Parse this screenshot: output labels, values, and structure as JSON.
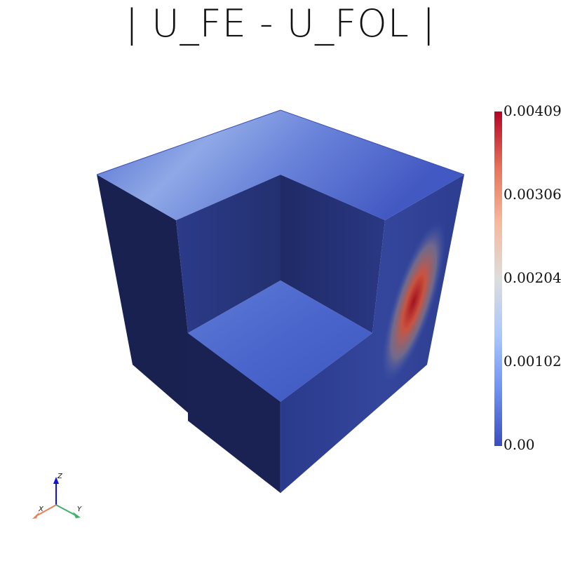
{
  "title": "| U_FE - U_FOL |",
  "colorbar": {
    "max_label": "0.00409",
    "labels": [
      "0.00306",
      "0.00204",
      "0.00102"
    ],
    "min_label": "0.00",
    "colors": [
      "#3b4cc0",
      "#6f92f3",
      "#aac7fd",
      "#dddddd",
      "#f7b89c",
      "#e7745b",
      "#b40426"
    ]
  },
  "axes": {
    "x": "X",
    "y": "Y",
    "z": "Z",
    "x_color": "#e8805a",
    "y_color": "#3fb06a",
    "z_color": "#1010dd"
  }
}
